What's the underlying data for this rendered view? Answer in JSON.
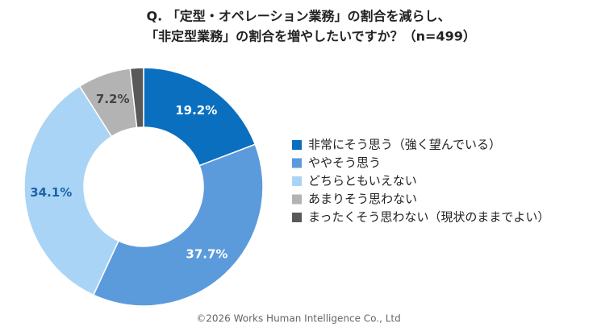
{
  "chart_data": {
    "type": "donut",
    "title": [
      "Q. 「定型・オペレーション業務」の割合を減らし、",
      "「非定型業務」の割合を増やしたいですか？（n=499）"
    ],
    "categories": [
      "非常にそう思う（強く望んでいる）",
      "ややそう思う",
      "どちらともいえない",
      "あまりそう思わない",
      "まったくそう思わない（現状のままでよい）"
    ],
    "values": [
      19.2,
      37.7,
      34.1,
      7.2,
      1.8
    ],
    "value_labels": [
      "19.2%",
      "37.7%",
      "34.1%",
      "7.2%",
      null
    ],
    "colors": [
      "#0b6fc0",
      "#5b9bdc",
      "#a9d4f5",
      "#b3b3b3",
      "#595959"
    ],
    "label_colors": [
      "#ffffff",
      "#ffffff",
      "#1d64a8",
      "#444444",
      "#ffffff"
    ],
    "legend": "right",
    "footer": "©2026 Works Human Intelligence Co., Ltd"
  }
}
